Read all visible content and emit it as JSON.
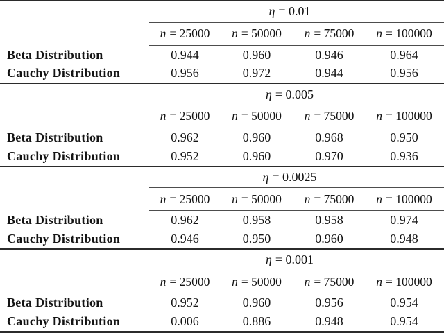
{
  "table": {
    "eta_var": "η",
    "col_var": "n",
    "row_labels": [
      "Beta Distribution",
      "Cauchy Distribution"
    ],
    "sections": [
      {
        "eta_rest": "= 0.01",
        "cols": [
          "= 25000",
          "= 50000",
          "= 75000",
          "= 100000"
        ],
        "rows": [
          [
            "0.944",
            "0.960",
            "0.946",
            "0.964"
          ],
          [
            "0.956",
            "0.972",
            "0.944",
            "0.956"
          ]
        ]
      },
      {
        "eta_rest": "= 0.005",
        "cols": [
          "= 25000",
          "= 50000",
          "= 75000",
          "= 100000"
        ],
        "rows": [
          [
            "0.962",
            "0.960",
            "0.968",
            "0.950"
          ],
          [
            "0.952",
            "0.960",
            "0.970",
            "0.936"
          ]
        ]
      },
      {
        "eta_rest": "= 0.0025",
        "cols": [
          "= 25000",
          "= 50000",
          "= 75000",
          "= 100000"
        ],
        "rows": [
          [
            "0.962",
            "0.958",
            "0.958",
            "0.974"
          ],
          [
            "0.946",
            "0.950",
            "0.960",
            "0.948"
          ]
        ]
      },
      {
        "eta_rest": "= 0.001",
        "cols": [
          "= 25000",
          "= 50000",
          "= 75000",
          "= 100000"
        ],
        "rows": [
          [
            "0.952",
            "0.960",
            "0.956",
            "0.954"
          ],
          [
            "0.006",
            "0.886",
            "0.948",
            "0.954"
          ]
        ]
      }
    ],
    "rule_color_full": "#2b2b2b",
    "rule_color_partial": "#4d4d4d"
  }
}
